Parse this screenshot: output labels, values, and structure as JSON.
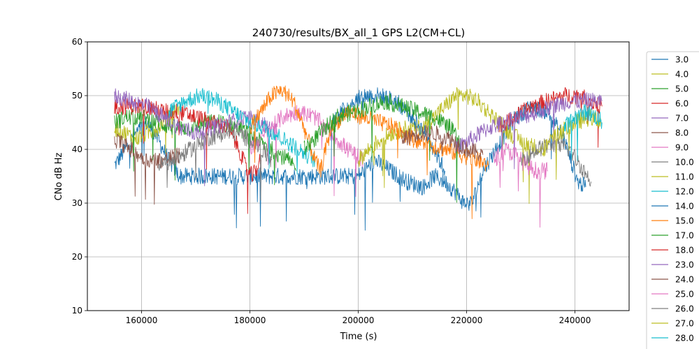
{
  "chart_data": {
    "type": "line",
    "title": "240730/results/BX_all_1 GPS L2(CM+CL)",
    "xlabel": "Time (s)",
    "ylabel": "CNo dB Hz",
    "xlim": [
      150000,
      250000
    ],
    "ylim": [
      10,
      60
    ],
    "xticks": [
      160000,
      180000,
      200000,
      220000,
      240000
    ],
    "xtick_labels": [
      "160000",
      "180000",
      "200000",
      "220000",
      "240000"
    ],
    "yticks": [
      10,
      20,
      30,
      40,
      50,
      60
    ],
    "ytick_labels": [
      "10",
      "20",
      "30",
      "40",
      "50",
      "60"
    ],
    "grid": true,
    "legend_position": "outside right",
    "series": [
      {
        "name": "3.0",
        "color": "#1f77b4",
        "points": [
          [
            155000,
            37
          ],
          [
            157000,
            40
          ],
          [
            159000,
            43
          ],
          [
            161000,
            45
          ],
          [
            163000,
            42
          ],
          [
            165000,
            38
          ],
          [
            167000,
            35
          ],
          [
            200000,
            35
          ],
          [
            203000,
            38
          ],
          [
            206000,
            36
          ],
          [
            209000,
            34
          ],
          [
            212000,
            33
          ],
          [
            214000,
            35
          ],
          [
            216000,
            34
          ],
          [
            218000,
            32
          ],
          [
            219500,
            30
          ],
          [
            221000,
            30
          ],
          [
            223000,
            36
          ],
          [
            226000,
            41
          ],
          [
            229000,
            46
          ],
          [
            232000,
            48
          ],
          [
            235000,
            47
          ],
          [
            238000,
            42
          ],
          [
            240500,
            34
          ],
          [
            242000,
            33
          ]
        ]
      },
      {
        "name": "4.0",
        "color": "#bcbd22",
        "points": [
          [
            155000,
            44
          ],
          [
            157000,
            43
          ],
          [
            159000,
            42
          ],
          [
            161000,
            43
          ],
          [
            163000,
            44
          ],
          [
            165000,
            46
          ],
          [
            167000,
            48
          ]
        ]
      },
      {
        "name": "5.0",
        "color": "#2ca02c",
        "points": [
          [
            155000,
            45
          ],
          [
            157000,
            46
          ],
          [
            160000,
            46
          ],
          [
            163000,
            45
          ],
          [
            166000,
            44
          ],
          [
            169000,
            44
          ],
          [
            172000,
            45
          ],
          [
            175000,
            45
          ],
          [
            178000,
            44
          ],
          [
            181000,
            42
          ],
          [
            184000,
            40
          ],
          [
            187000,
            38
          ],
          [
            188500,
            36
          ]
        ]
      },
      {
        "name": "6.0",
        "color": "#d62728",
        "points": [
          [
            155000,
            48
          ],
          [
            158000,
            48
          ],
          [
            161000,
            48
          ],
          [
            164000,
            47
          ],
          [
            167000,
            47
          ],
          [
            170000,
            46
          ],
          [
            173000,
            45
          ],
          [
            176000,
            44
          ],
          [
            178000,
            40
          ],
          [
            179500,
            36
          ],
          [
            180500,
            35
          ],
          [
            182000,
            38
          ]
        ]
      },
      {
        "name": "7.0",
        "color": "#9467bd",
        "points": [
          [
            155000,
            50
          ],
          [
            158000,
            49
          ],
          [
            161000,
            48
          ],
          [
            164000,
            46
          ],
          [
            167000,
            44
          ],
          [
            170000,
            43
          ],
          [
            173000,
            44
          ],
          [
            176000,
            45
          ],
          [
            179000,
            46
          ],
          [
            182000,
            45
          ],
          [
            185000,
            43
          ]
        ]
      },
      {
        "name": "8.0",
        "color": "#8c564b",
        "points": [
          [
            155000,
            42
          ],
          [
            158000,
            40
          ],
          [
            161000,
            38
          ],
          [
            164000,
            38
          ],
          [
            167000,
            39
          ]
        ]
      },
      {
        "name": "9.0",
        "color": "#e377c2",
        "points": [
          [
            180000,
            40
          ],
          [
            183000,
            43
          ],
          [
            186000,
            46
          ],
          [
            189000,
            47
          ],
          [
            192000,
            46
          ],
          [
            195000,
            43
          ],
          [
            198000,
            40
          ],
          [
            201000,
            38
          ]
        ]
      },
      {
        "name": "10.0",
        "color": "#7f7f7f",
        "points": [
          [
            163000,
            37
          ],
          [
            166000,
            38
          ],
          [
            169000,
            40
          ],
          [
            172000,
            42
          ],
          [
            175000,
            43
          ],
          [
            178000,
            43
          ],
          [
            181000,
            41
          ],
          [
            184000,
            38
          ]
        ]
      },
      {
        "name": "11.0",
        "color": "#bcbd22",
        "points": [
          [
            200000,
            38
          ],
          [
            203000,
            41
          ],
          [
            206000,
            43
          ],
          [
            209000,
            44
          ],
          [
            212000,
            44
          ],
          [
            215000,
            47
          ],
          [
            218000,
            50
          ],
          [
            220000,
            50
          ],
          [
            222000,
            49
          ],
          [
            225000,
            46
          ],
          [
            228000,
            43
          ],
          [
            231000,
            41
          ],
          [
            234000,
            40
          ]
        ]
      },
      {
        "name": "12.0",
        "color": "#17becf",
        "points": [
          [
            165000,
            47
          ],
          [
            168000,
            49
          ],
          [
            171000,
            50
          ],
          [
            174000,
            49
          ],
          [
            177000,
            47
          ],
          [
            180000,
            45
          ],
          [
            183000,
            44
          ],
          [
            186000,
            42
          ],
          [
            189000,
            40
          ],
          [
            192000,
            38
          ]
        ]
      },
      {
        "name": "14.0",
        "color": "#1f77b4",
        "points": [
          [
            195000,
            45
          ],
          [
            198000,
            48
          ],
          [
            201000,
            50
          ],
          [
            204000,
            50
          ],
          [
            207000,
            49
          ],
          [
            210000,
            46
          ],
          [
            213000,
            42
          ],
          [
            216000,
            36
          ]
        ]
      },
      {
        "name": "15.0",
        "color": "#ff7f0e",
        "points": [
          [
            180000,
            44
          ],
          [
            182000,
            47
          ],
          [
            184000,
            50
          ],
          [
            186000,
            51
          ],
          [
            188000,
            49
          ],
          [
            190000,
            44
          ],
          [
            192000,
            38
          ],
          [
            193000,
            36
          ],
          [
            195000,
            44
          ],
          [
            198000,
            47
          ],
          [
            201000,
            46
          ],
          [
            204000,
            45
          ],
          [
            207000,
            44
          ],
          [
            210000,
            42
          ],
          [
            213000,
            41
          ],
          [
            216000,
            40
          ],
          [
            219000,
            39
          ],
          [
            222000,
            38
          ],
          [
            224000,
            37
          ]
        ]
      },
      {
        "name": "17.0",
        "color": "#2ca02c",
        "points": [
          [
            190000,
            40
          ],
          [
            193000,
            43
          ],
          [
            196000,
            46
          ],
          [
            199000,
            47
          ],
          [
            202000,
            48
          ],
          [
            205000,
            49
          ],
          [
            208000,
            48
          ],
          [
            211000,
            47
          ],
          [
            214000,
            46
          ],
          [
            217000,
            44
          ],
          [
            219000,
            41
          ]
        ]
      },
      {
        "name": "18.0",
        "color": "#d62728",
        "points": [
          [
            226000,
            44
          ],
          [
            229000,
            46
          ],
          [
            232000,
            48
          ],
          [
            235000,
            49
          ],
          [
            238000,
            50
          ],
          [
            241000,
            50
          ],
          [
            243000,
            49
          ],
          [
            245000,
            48
          ]
        ]
      },
      {
        "name": "23.0",
        "color": "#9467bd",
        "points": [
          [
            218000,
            40
          ],
          [
            221000,
            42
          ],
          [
            224000,
            44
          ],
          [
            227000,
            45
          ],
          [
            230000,
            46
          ],
          [
            233000,
            47
          ],
          [
            236000,
            48
          ],
          [
            239000,
            49
          ],
          [
            242000,
            49
          ],
          [
            245000,
            49
          ]
        ]
      },
      {
        "name": "24.0",
        "color": "#8c564b",
        "points": [
          [
            208000,
            42
          ],
          [
            211000,
            43
          ],
          [
            214000,
            43
          ],
          [
            217000,
            42
          ],
          [
            220000,
            40
          ],
          [
            223000,
            39
          ]
        ]
      },
      {
        "name": "25.0",
        "color": "#e377c2",
        "points": [
          [
            225000,
            38
          ],
          [
            227000,
            40
          ],
          [
            229000,
            39
          ],
          [
            231000,
            37
          ],
          [
            233000,
            36
          ],
          [
            235000,
            36
          ]
        ]
      },
      {
        "name": "26.0",
        "color": "#7f7f7f",
        "points": [
          [
            230000,
            38
          ],
          [
            233000,
            40
          ],
          [
            236000,
            41
          ],
          [
            239000,
            40
          ],
          [
            241000,
            37
          ],
          [
            243000,
            34
          ]
        ]
      },
      {
        "name": "27.0",
        "color": "#bcbd22",
        "points": [
          [
            234000,
            40
          ],
          [
            237000,
            43
          ],
          [
            240000,
            45
          ],
          [
            243000,
            46
          ],
          [
            245000,
            45
          ]
        ]
      },
      {
        "name": "28.0",
        "color": "#17becf",
        "points": [
          [
            238000,
            44
          ],
          [
            240000,
            46
          ],
          [
            242000,
            47
          ],
          [
            244000,
            46
          ],
          [
            245000,
            45
          ]
        ]
      }
    ]
  }
}
